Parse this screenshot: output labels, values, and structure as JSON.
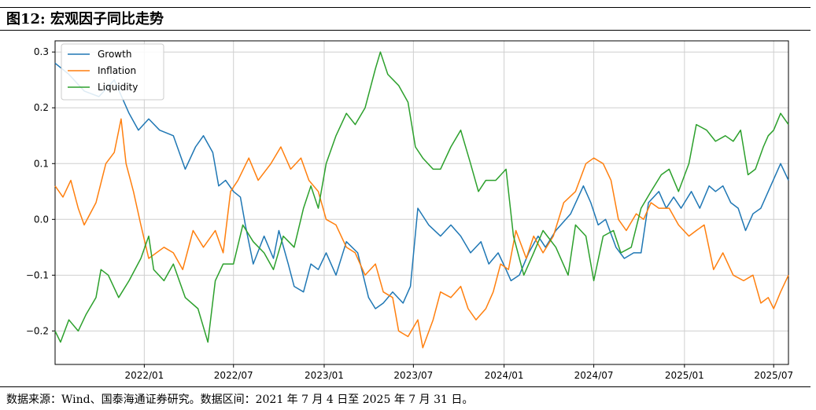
{
  "title": "图12:  宏观因子同比走势",
  "source_note": "数据来源：Wind、国泰海通证券研究。数据区间：2021 年 7 月 4 日至 2025 年 7 月 31 日。",
  "chart_data": {
    "type": "line",
    "title": "图12: 宏观因子同比走势",
    "xlabel": "",
    "ylabel": "",
    "x_range": [
      "2021-07-04",
      "2025-07-31"
    ],
    "ylim": [
      -0.26,
      0.32
    ],
    "yticks": [
      -0.2,
      -0.1,
      0.0,
      0.1,
      0.2,
      0.3
    ],
    "ytick_labels": [
      "−0.2",
      "−0.1",
      "0.0",
      "0.1",
      "0.2",
      "0.3"
    ],
    "xticks": [
      {
        "date": "2022-01",
        "label": "2022/01"
      },
      {
        "date": "2022-07",
        "label": "2022/07"
      },
      {
        "date": "2023-01",
        "label": "2023/01"
      },
      {
        "date": "2023-07",
        "label": "2023/07"
      },
      {
        "date": "2024-01",
        "label": "2024/01"
      },
      {
        "date": "2024-07",
        "label": "2024/07"
      },
      {
        "date": "2025-01",
        "label": "2025/01"
      },
      {
        "date": "2025-07",
        "label": "2025/07"
      }
    ],
    "grid": true,
    "legend_position": "top-left",
    "series": [
      {
        "name": "Growth",
        "color": "#1f77b4",
        "points": [
          [
            "2021-07-04",
            0.28
          ],
          [
            "2021-08-01",
            0.26
          ],
          [
            "2021-09-01",
            0.23
          ],
          [
            "2021-10-01",
            0.22
          ],
          [
            "2021-11-01",
            0.25
          ],
          [
            "2021-12-01",
            0.19
          ],
          [
            "2021-12-20",
            0.16
          ],
          [
            "2022-01-10",
            0.18
          ],
          [
            "2022-02-01",
            0.16
          ],
          [
            "2022-03-01",
            0.15
          ],
          [
            "2022-03-25",
            0.09
          ],
          [
            "2022-04-15",
            0.13
          ],
          [
            "2022-05-01",
            0.15
          ],
          [
            "2022-05-20",
            0.12
          ],
          [
            "2022-06-01",
            0.06
          ],
          [
            "2022-06-15",
            0.07
          ],
          [
            "2022-07-01",
            0.05
          ],
          [
            "2022-07-15",
            0.04
          ],
          [
            "2022-07-25",
            -0.01
          ],
          [
            "2022-08-10",
            -0.08
          ],
          [
            "2022-09-01",
            -0.03
          ],
          [
            "2022-09-20",
            -0.07
          ],
          [
            "2022-10-01",
            -0.02
          ],
          [
            "2022-10-20",
            -0.08
          ],
          [
            "2022-11-01",
            -0.12
          ],
          [
            "2022-11-20",
            -0.13
          ],
          [
            "2022-12-05",
            -0.08
          ],
          [
            "2022-12-20",
            -0.09
          ],
          [
            "2023-01-05",
            -0.06
          ],
          [
            "2023-01-25",
            -0.1
          ],
          [
            "2023-02-15",
            -0.04
          ],
          [
            "2023-03-10",
            -0.06
          ],
          [
            "2023-04-01",
            -0.14
          ],
          [
            "2023-04-15",
            -0.16
          ],
          [
            "2023-05-01",
            -0.15
          ],
          [
            "2023-05-20",
            -0.13
          ],
          [
            "2023-06-10",
            -0.15
          ],
          [
            "2023-06-25",
            -0.12
          ],
          [
            "2023-07-10",
            0.02
          ],
          [
            "2023-08-01",
            -0.01
          ],
          [
            "2023-08-25",
            -0.03
          ],
          [
            "2023-09-15",
            -0.01
          ],
          [
            "2023-10-05",
            -0.03
          ],
          [
            "2023-10-25",
            -0.06
          ],
          [
            "2023-11-15",
            -0.04
          ],
          [
            "2023-12-01",
            -0.08
          ],
          [
            "2023-12-20",
            -0.06
          ],
          [
            "2024-01-05",
            -0.09
          ],
          [
            "2024-01-15",
            -0.11
          ],
          [
            "2024-02-01",
            -0.1
          ],
          [
            "2024-02-20",
            -0.06
          ],
          [
            "2024-03-10",
            -0.03
          ],
          [
            "2024-03-25",
            -0.05
          ],
          [
            "2024-04-15",
            -0.02
          ],
          [
            "2024-05-15",
            0.01
          ],
          [
            "2024-06-10",
            0.06
          ],
          [
            "2024-06-25",
            0.03
          ],
          [
            "2024-07-10",
            -0.01
          ],
          [
            "2024-07-25",
            0.0
          ],
          [
            "2024-08-15",
            -0.05
          ],
          [
            "2024-09-01",
            -0.07
          ],
          [
            "2024-09-20",
            -0.06
          ],
          [
            "2024-10-05",
            -0.06
          ],
          [
            "2024-10-20",
            0.03
          ],
          [
            "2024-11-10",
            0.05
          ],
          [
            "2024-11-25",
            0.02
          ],
          [
            "2024-12-10",
            0.04
          ],
          [
            "2024-12-25",
            0.02
          ],
          [
            "2025-01-15",
            0.05
          ],
          [
            "2025-02-01",
            0.02
          ],
          [
            "2025-02-20",
            0.06
          ],
          [
            "2025-03-05",
            0.05
          ],
          [
            "2025-03-20",
            0.06
          ],
          [
            "2025-04-05",
            0.03
          ],
          [
            "2025-04-20",
            0.02
          ],
          [
            "2025-05-05",
            -0.02
          ],
          [
            "2025-05-20",
            0.01
          ],
          [
            "2025-06-05",
            0.02
          ],
          [
            "2025-06-20",
            0.05
          ],
          [
            "2025-07-15",
            0.1
          ],
          [
            "2025-07-31",
            0.07
          ]
        ]
      },
      {
        "name": "Inflation",
        "color": "#ff7f0e",
        "points": [
          [
            "2021-07-04",
            0.06
          ],
          [
            "2021-07-20",
            0.04
          ],
          [
            "2021-08-05",
            0.07
          ],
          [
            "2021-08-20",
            0.02
          ],
          [
            "2021-09-01",
            -0.01
          ],
          [
            "2021-09-25",
            0.03
          ],
          [
            "2021-10-15",
            0.1
          ],
          [
            "2021-11-01",
            0.12
          ],
          [
            "2021-11-15",
            0.18
          ],
          [
            "2021-11-25",
            0.1
          ],
          [
            "2021-12-10",
            0.05
          ],
          [
            "2021-12-25",
            -0.01
          ],
          [
            "2022-01-10",
            -0.07
          ],
          [
            "2022-02-10",
            -0.05
          ],
          [
            "2022-03-01",
            -0.06
          ],
          [
            "2022-03-20",
            -0.09
          ],
          [
            "2022-04-10",
            -0.02
          ],
          [
            "2022-05-01",
            -0.05
          ],
          [
            "2022-05-25",
            -0.02
          ],
          [
            "2022-06-10",
            -0.06
          ],
          [
            "2022-06-25",
            0.05
          ],
          [
            "2022-07-10",
            0.07
          ],
          [
            "2022-08-01",
            0.11
          ],
          [
            "2022-08-20",
            0.07
          ],
          [
            "2022-09-15",
            0.1
          ],
          [
            "2022-10-05",
            0.13
          ],
          [
            "2022-10-25",
            0.09
          ],
          [
            "2022-11-15",
            0.11
          ],
          [
            "2022-12-01",
            0.07
          ],
          [
            "2022-12-20",
            0.05
          ],
          [
            "2023-01-05",
            0.0
          ],
          [
            "2023-01-25",
            -0.01
          ],
          [
            "2023-02-15",
            -0.05
          ],
          [
            "2023-03-05",
            -0.06
          ],
          [
            "2023-03-25",
            -0.1
          ],
          [
            "2023-04-15",
            -0.08
          ],
          [
            "2023-05-01",
            -0.13
          ],
          [
            "2023-05-20",
            -0.14
          ],
          [
            "2023-06-01",
            -0.2
          ],
          [
            "2023-06-20",
            -0.21
          ],
          [
            "2023-07-10",
            -0.18
          ],
          [
            "2023-07-20",
            -0.23
          ],
          [
            "2023-08-10",
            -0.18
          ],
          [
            "2023-08-25",
            -0.13
          ],
          [
            "2023-09-15",
            -0.14
          ],
          [
            "2023-10-05",
            -0.12
          ],
          [
            "2023-10-20",
            -0.16
          ],
          [
            "2023-11-05",
            -0.18
          ],
          [
            "2023-11-25",
            -0.16
          ],
          [
            "2023-12-10",
            -0.13
          ],
          [
            "2023-12-25",
            -0.08
          ],
          [
            "2024-01-10",
            -0.09
          ],
          [
            "2024-01-25",
            -0.02
          ],
          [
            "2024-02-15",
            -0.07
          ],
          [
            "2024-03-01",
            -0.03
          ],
          [
            "2024-03-20",
            -0.06
          ],
          [
            "2024-04-10",
            -0.03
          ],
          [
            "2024-05-01",
            0.03
          ],
          [
            "2024-05-25",
            0.05
          ],
          [
            "2024-06-15",
            0.1
          ],
          [
            "2024-07-01",
            0.11
          ],
          [
            "2024-07-20",
            0.1
          ],
          [
            "2024-08-05",
            0.07
          ],
          [
            "2024-08-20",
            0.0
          ],
          [
            "2024-09-05",
            -0.02
          ],
          [
            "2024-09-25",
            0.01
          ],
          [
            "2024-10-10",
            0.0
          ],
          [
            "2024-10-25",
            0.03
          ],
          [
            "2024-11-10",
            0.02
          ],
          [
            "2024-12-01",
            0.02
          ],
          [
            "2024-12-20",
            -0.01
          ],
          [
            "2025-01-10",
            -0.03
          ],
          [
            "2025-01-25",
            -0.02
          ],
          [
            "2025-02-10",
            -0.01
          ],
          [
            "2025-03-01",
            -0.09
          ],
          [
            "2025-03-20",
            -0.06
          ],
          [
            "2025-04-10",
            -0.1
          ],
          [
            "2025-05-01",
            -0.11
          ],
          [
            "2025-05-20",
            -0.1
          ],
          [
            "2025-06-05",
            -0.15
          ],
          [
            "2025-06-20",
            -0.14
          ],
          [
            "2025-07-01",
            -0.16
          ],
          [
            "2025-07-15",
            -0.13
          ],
          [
            "2025-07-31",
            -0.1
          ]
        ]
      },
      {
        "name": "Liquidity",
        "color": "#2ca02c",
        "points": [
          [
            "2021-07-04",
            -0.2
          ],
          [
            "2021-07-15",
            -0.22
          ],
          [
            "2021-08-01",
            -0.18
          ],
          [
            "2021-08-20",
            -0.2
          ],
          [
            "2021-09-05",
            -0.17
          ],
          [
            "2021-09-25",
            -0.14
          ],
          [
            "2021-10-05",
            -0.09
          ],
          [
            "2021-10-20",
            -0.1
          ],
          [
            "2021-11-10",
            -0.14
          ],
          [
            "2021-12-01",
            -0.11
          ],
          [
            "2021-12-25",
            -0.07
          ],
          [
            "2022-01-10",
            -0.03
          ],
          [
            "2022-01-20",
            -0.09
          ],
          [
            "2022-02-10",
            -0.11
          ],
          [
            "2022-03-01",
            -0.08
          ],
          [
            "2022-03-25",
            -0.14
          ],
          [
            "2022-04-20",
            -0.16
          ],
          [
            "2022-05-10",
            -0.22
          ],
          [
            "2022-05-25",
            -0.11
          ],
          [
            "2022-06-10",
            -0.08
          ],
          [
            "2022-07-01",
            -0.08
          ],
          [
            "2022-07-20",
            -0.01
          ],
          [
            "2022-08-10",
            -0.04
          ],
          [
            "2022-09-01",
            -0.06
          ],
          [
            "2022-09-20",
            -0.09
          ],
          [
            "2022-10-10",
            -0.03
          ],
          [
            "2022-11-01",
            -0.05
          ],
          [
            "2022-11-20",
            0.02
          ],
          [
            "2022-12-05",
            0.06
          ],
          [
            "2022-12-20",
            0.02
          ],
          [
            "2023-01-05",
            0.1
          ],
          [
            "2023-01-25",
            0.15
          ],
          [
            "2023-02-15",
            0.19
          ],
          [
            "2023-03-05",
            0.17
          ],
          [
            "2023-03-25",
            0.2
          ],
          [
            "2023-04-15",
            0.27
          ],
          [
            "2023-04-25",
            0.3
          ],
          [
            "2023-05-10",
            0.26
          ],
          [
            "2023-06-01",
            0.24
          ],
          [
            "2023-06-20",
            0.21
          ],
          [
            "2023-07-05",
            0.13
          ],
          [
            "2023-07-20",
            0.11
          ],
          [
            "2023-08-10",
            0.09
          ],
          [
            "2023-08-25",
            0.09
          ],
          [
            "2023-09-15",
            0.13
          ],
          [
            "2023-10-05",
            0.16
          ],
          [
            "2023-10-25",
            0.1
          ],
          [
            "2023-11-10",
            0.05
          ],
          [
            "2023-11-25",
            0.07
          ],
          [
            "2023-12-15",
            0.07
          ],
          [
            "2024-01-05",
            0.09
          ],
          [
            "2024-01-20",
            -0.03
          ],
          [
            "2024-02-10",
            -0.1
          ],
          [
            "2024-03-01",
            -0.06
          ],
          [
            "2024-03-20",
            -0.02
          ],
          [
            "2024-04-15",
            -0.05
          ],
          [
            "2024-05-10",
            -0.1
          ],
          [
            "2024-05-25",
            -0.01
          ],
          [
            "2024-06-15",
            -0.03
          ],
          [
            "2024-07-01",
            -0.11
          ],
          [
            "2024-07-20",
            -0.03
          ],
          [
            "2024-08-10",
            -0.02
          ],
          [
            "2024-08-25",
            -0.06
          ],
          [
            "2024-09-15",
            -0.05
          ],
          [
            "2024-10-05",
            0.02
          ],
          [
            "2024-10-25",
            0.05
          ],
          [
            "2024-11-15",
            0.08
          ],
          [
            "2024-12-01",
            0.09
          ],
          [
            "2024-12-20",
            0.05
          ],
          [
            "2025-01-10",
            0.1
          ],
          [
            "2025-01-25",
            0.17
          ],
          [
            "2025-02-15",
            0.16
          ],
          [
            "2025-03-05",
            0.14
          ],
          [
            "2025-03-25",
            0.15
          ],
          [
            "2025-04-10",
            0.14
          ],
          [
            "2025-04-25",
            0.16
          ],
          [
            "2025-05-10",
            0.08
          ],
          [
            "2025-05-25",
            0.09
          ],
          [
            "2025-06-10",
            0.13
          ],
          [
            "2025-06-20",
            0.15
          ],
          [
            "2025-07-01",
            0.16
          ],
          [
            "2025-07-15",
            0.19
          ],
          [
            "2025-07-31",
            0.17
          ]
        ]
      }
    ]
  }
}
